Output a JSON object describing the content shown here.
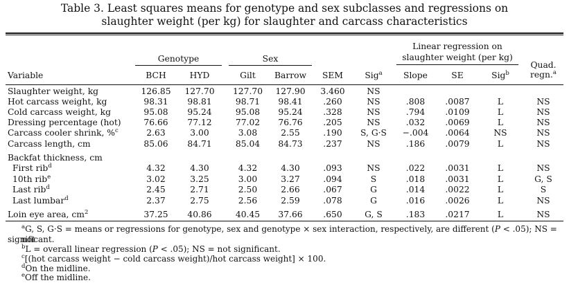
{
  "title": {
    "line1": "Table 3. Least squares means for genotype and sex subclasses and regressions on",
    "line2": "slaughter weight (per kg) for slaughter and carcass characteristics"
  },
  "groups": {
    "genotype": "Genotype",
    "sex": "Sex",
    "linreg_line1": "Linear regression on",
    "linreg_line2": "slaughter weight (per kg)",
    "quad_line1": "Quad.",
    "quad_line2": "regn.",
    "quad_sup": "a"
  },
  "columns": {
    "variable": "Variable",
    "bch": "BCH",
    "hyd": "HYD",
    "gilt": "Gilt",
    "barrow": "Barrow",
    "sem": "SEM",
    "sig1": "Sig",
    "sig1_sup": "a",
    "slope": "Slope",
    "se": "SE",
    "sig2": "Sig",
    "sig2_sup": "b"
  },
  "rows": [
    {
      "var": "Slaughter weight, kg",
      "sup": "",
      "bch": "126.85",
      "hyd": "127.70",
      "gilt": "127.70",
      "barrow": "127.90",
      "sem": "3.460",
      "sig": "NS",
      "slope": "",
      "se": "",
      "sigb": "",
      "quad": ""
    },
    {
      "var": "Hot carcass weight, kg",
      "sup": "",
      "bch": "98.31",
      "hyd": "98.81",
      "gilt": "98.71",
      "barrow": "98.41",
      "sem": ".260",
      "sig": "NS",
      "slope": ".808",
      "se": ".0087",
      "sigb": "L",
      "quad": "NS"
    },
    {
      "var": "Cold carcass weight, kg",
      "sup": "",
      "bch": "95.08",
      "hyd": "95.24",
      "gilt": "95.08",
      "barrow": "95.24",
      "sem": ".328",
      "sig": "NS",
      "slope": ".794",
      "se": ".0109",
      "sigb": "L",
      "quad": "NS"
    },
    {
      "var": "Dressing percentage (hot)",
      "sup": "",
      "bch": "76.66",
      "hyd": "77.12",
      "gilt": "77.02",
      "barrow": "76.76",
      "sem": ".205",
      "sig": "NS",
      "slope": ".032",
      "se": ".0069",
      "sigb": "L",
      "quad": "NS"
    },
    {
      "var": "Carcass cooler shrink, %",
      "sup": "c",
      "bch": "2.63",
      "hyd": "3.00",
      "gilt": "3.08",
      "barrow": "2.55",
      "sem": ".190",
      "sig": "S, G·S",
      "slope": "−.004",
      "se": ".0064",
      "sigb": "NS",
      "quad": "NS"
    },
    {
      "var": "Carcass length, cm",
      "sup": "",
      "bch": "85.06",
      "hyd": "84.71",
      "gilt": "85.04",
      "barrow": "84.73",
      "sem": ".237",
      "sig": "NS",
      "slope": ".186",
      "se": ".0079",
      "sigb": "L",
      "quad": "NS"
    },
    {
      "var": "Backfat thickness, cm",
      "sup": "",
      "bch": "",
      "hyd": "",
      "gilt": "",
      "barrow": "",
      "sem": "",
      "sig": "",
      "slope": "",
      "se": "",
      "sigb": "",
      "quad": ""
    },
    {
      "var": "First rib",
      "sup": "d",
      "bch": "4.32",
      "hyd": "4.30",
      "gilt": "4.32",
      "barrow": "4.30",
      "sem": ".093",
      "sig": "NS",
      "slope": ".022",
      "se": ".0031",
      "sigb": "L",
      "quad": "NS"
    },
    {
      "var": "10th rib",
      "sup": "e",
      "bch": "3.02",
      "hyd": "3.25",
      "gilt": "3.00",
      "barrow": "3.27",
      "sem": ".094",
      "sig": "S",
      "slope": ".018",
      "se": ".0031",
      "sigb": "L",
      "quad": "G, S"
    },
    {
      "var": "Last rib",
      "sup": "d",
      "bch": "2.45",
      "hyd": "2.71",
      "gilt": "2.50",
      "barrow": "2.66",
      "sem": ".067",
      "sig": "G",
      "slope": ".014",
      "se": ".0022",
      "sigb": "L",
      "quad": "S"
    },
    {
      "var": "Last lumbar",
      "sup": "d",
      "bch": "2.37",
      "hyd": "2.75",
      "gilt": "2.56",
      "barrow": "2.59",
      "sem": ".078",
      "sig": "G",
      "slope": ".016",
      "se": ".0026",
      "sigb": "L",
      "quad": "NS"
    },
    {
      "var": "Loin eye area, cm",
      "sup": "2",
      "bch": "37.25",
      "hyd": "40.86",
      "gilt": "40.45",
      "barrow": "37.66",
      "sem": ".650",
      "sig": "G, S",
      "slope": ".183",
      "se": ".0217",
      "sigb": "L",
      "quad": "NS"
    }
  ],
  "footnotes": {
    "a_sup": "a",
    "a_part1": "G, S, G·S = means or regressions for genotype, sex and genotype × sex interaction, respectively, are different (",
    "a_p": "P",
    "a_part2": " < .05); NS = not",
    "a_cont": "significant.",
    "b_sup": "b",
    "b_part1": "L = overall linear regression (",
    "b_p": "P",
    "b_part2": " < .05); NS = not significant.",
    "c_sup": "c",
    "c_text": "[(hot carcass weight − cold carcass weight)/hot carcass weight] × 100.",
    "d_sup": "d",
    "d_text": "On the midline.",
    "e_sup": "e",
    "e_text": "Off the midline."
  }
}
